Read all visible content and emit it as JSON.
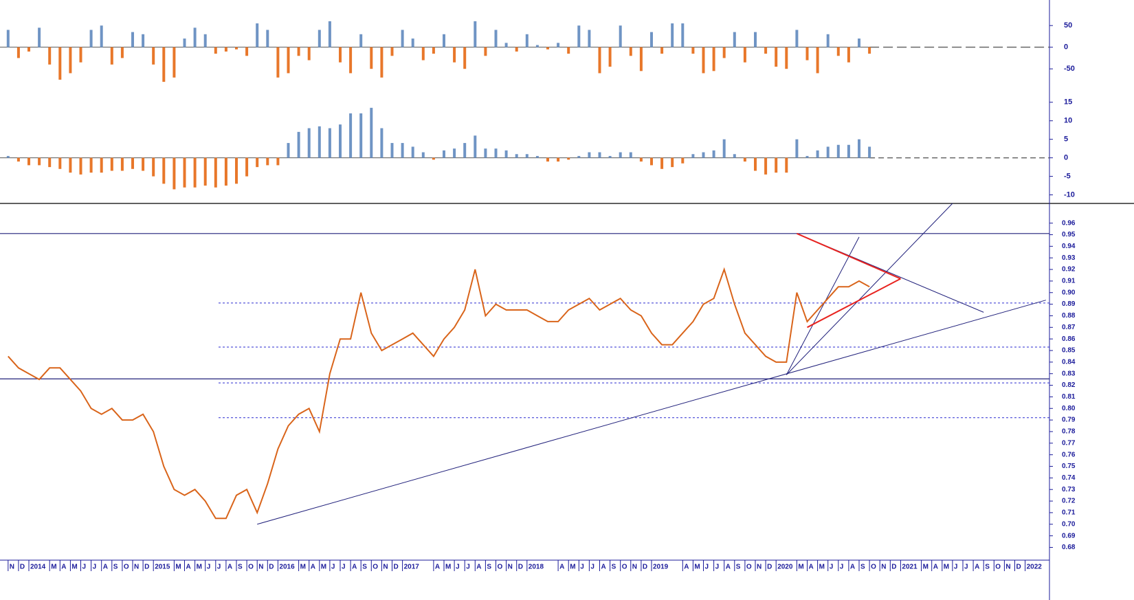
{
  "chart_data": [
    {
      "type": "bar",
      "ylim": [
        -110,
        109
      ],
      "yticks": [
        -50,
        0,
        50
      ],
      "colors": {
        "positive": "#6f94c4",
        "negative": "#e8772a"
      },
      "x": [
        "2013-11",
        "2013-12",
        "2014-01",
        "2014-02",
        "2014-03",
        "2014-04",
        "2014-05",
        "2014-06",
        "2014-07",
        "2014-08",
        "2014-09",
        "2014-10",
        "2014-11",
        "2014-12",
        "2015-01",
        "2015-02",
        "2015-03",
        "2015-04",
        "2015-05",
        "2015-06",
        "2015-07",
        "2015-08",
        "2015-09",
        "2015-10",
        "2015-11",
        "2015-12",
        "2016-01",
        "2016-02",
        "2016-03",
        "2016-04",
        "2016-05",
        "2016-06",
        "2016-07",
        "2016-08",
        "2016-09",
        "2016-10",
        "2016-11",
        "2016-12",
        "2017-01",
        "2017-02",
        "2017-03",
        "2017-04",
        "2017-05",
        "2017-06",
        "2017-07",
        "2017-08",
        "2017-09",
        "2017-10",
        "2017-11",
        "2017-12",
        "2018-01",
        "2018-02",
        "2018-03",
        "2018-04",
        "2018-05",
        "2018-06",
        "2018-07",
        "2018-08",
        "2018-09",
        "2018-10",
        "2018-11",
        "2018-12",
        "2019-01",
        "2019-02",
        "2019-03",
        "2019-04",
        "2019-05",
        "2019-06",
        "2019-07",
        "2019-08",
        "2019-09",
        "2019-10",
        "2019-11",
        "2019-12",
        "2020-01",
        "2020-02",
        "2020-03",
        "2020-04",
        "2020-05",
        "2020-06",
        "2020-07",
        "2020-08",
        "2020-09",
        "2020-10"
      ],
      "values": [
        40,
        -25,
        -10,
        45,
        -40,
        -75,
        -60,
        -35,
        40,
        50,
        -40,
        -25,
        35,
        30,
        -40,
        -80,
        -70,
        20,
        45,
        30,
        -15,
        -10,
        -5,
        -20,
        55,
        40,
        -70,
        -60,
        -20,
        -30,
        40,
        60,
        -35,
        -60,
        30,
        -50,
        -70,
        -20,
        40,
        20,
        -30,
        -15,
        30,
        -35,
        -50,
        60,
        -20,
        40,
        10,
        -10,
        30,
        5,
        -5,
        10,
        -15,
        50,
        40,
        -60,
        -45,
        50,
        -20,
        -55,
        35,
        -15,
        55,
        55,
        -15,
        -60,
        -55,
        -25,
        35,
        -35,
        35,
        -15,
        -45,
        -50,
        40,
        -30,
        -60,
        30,
        -20,
        -35,
        20,
        -15
      ]
    },
    {
      "type": "bar",
      "ylim": [
        -11.2,
        15.7
      ],
      "yticks": [
        -10,
        -5,
        0,
        5,
        10,
        15
      ],
      "colors": {
        "positive": "#6f94c4",
        "negative": "#e8772a"
      },
      "x": [
        "2013-11",
        "2013-12",
        "2014-01",
        "2014-02",
        "2014-03",
        "2014-04",
        "2014-05",
        "2014-06",
        "2014-07",
        "2014-08",
        "2014-09",
        "2014-10",
        "2014-11",
        "2014-12",
        "2015-01",
        "2015-02",
        "2015-03",
        "2015-04",
        "2015-05",
        "2015-06",
        "2015-07",
        "2015-08",
        "2015-09",
        "2015-10",
        "2015-11",
        "2015-12",
        "2016-01",
        "2016-02",
        "2016-03",
        "2016-04",
        "2016-05",
        "2016-06",
        "2016-07",
        "2016-08",
        "2016-09",
        "2016-10",
        "2016-11",
        "2016-12",
        "2017-01",
        "2017-02",
        "2017-03",
        "2017-04",
        "2017-05",
        "2017-06",
        "2017-07",
        "2017-08",
        "2017-09",
        "2017-10",
        "2017-11",
        "2017-12",
        "2018-01",
        "2018-02",
        "2018-03",
        "2018-04",
        "2018-05",
        "2018-06",
        "2018-07",
        "2018-08",
        "2018-09",
        "2018-10",
        "2018-11",
        "2018-12",
        "2019-01",
        "2019-02",
        "2019-03",
        "2019-04",
        "2019-05",
        "2019-06",
        "2019-07",
        "2019-08",
        "2019-09",
        "2019-10",
        "2019-11",
        "2019-12",
        "2020-01",
        "2020-02",
        "2020-03",
        "2020-04",
        "2020-05",
        "2020-06",
        "2020-07",
        "2020-08",
        "2020-09",
        "2020-10"
      ],
      "values": [
        0.5,
        -1,
        -2,
        -2,
        -2.5,
        -3,
        -4,
        -4.5,
        -4,
        -4,
        -3.5,
        -3.5,
        -3,
        -3.5,
        -5,
        -7,
        -8.5,
        -8,
        -8,
        -7.5,
        -8,
        -7.5,
        -7,
        -5,
        -2.5,
        -2,
        -2,
        4,
        7,
        8,
        8.5,
        8,
        9,
        12,
        12,
        13.5,
        8,
        4,
        4,
        3,
        1.5,
        -0.5,
        2,
        2.5,
        4,
        6,
        2.5,
        2.5,
        2,
        1,
        1,
        0.5,
        -1,
        -1,
        -0.5,
        0.5,
        1.5,
        1.5,
        0.5,
        1.5,
        1.5,
        -1,
        -2,
        -3,
        -2.5,
        -1.5,
        1,
        1.5,
        2,
        5,
        1,
        -1,
        -3.5,
        -4.5,
        -4,
        -4,
        5,
        0.5,
        2,
        3,
        3.5,
        3.5,
        5,
        3
      ]
    },
    {
      "type": "line",
      "color": "#d9641a",
      "ylim": [
        0.669,
        0.977
      ],
      "yticks": [
        {
          "value": 0.68,
          "label": "0.68"
        },
        0.69,
        {
          "value": 0.7,
          "label": "0.70"
        },
        0.71,
        0.72,
        0.73,
        0.74,
        0.75,
        0.76,
        0.77,
        0.78,
        0.79,
        {
          "value": 0.8,
          "label": "0.80"
        },
        0.81,
        0.82,
        0.83,
        0.84,
        0.85,
        0.86,
        0.87,
        0.88,
        0.89,
        {
          "value": 0.9,
          "label": "0.90"
        },
        0.91,
        0.92,
        0.93,
        0.94,
        0.95,
        0.96
      ],
      "x": [
        "2013-11",
        "2013-12",
        "2014-01",
        "2014-02",
        "2014-03",
        "2014-04",
        "2014-05",
        "2014-06",
        "2014-07",
        "2014-08",
        "2014-09",
        "2014-10",
        "2014-11",
        "2014-12",
        "2015-01",
        "2015-02",
        "2015-03",
        "2015-04",
        "2015-05",
        "2015-06",
        "2015-07",
        "2015-08",
        "2015-09",
        "2015-10",
        "2015-11",
        "2015-12",
        "2016-01",
        "2016-02",
        "2016-03",
        "2016-04",
        "2016-05",
        "2016-06",
        "2016-07",
        "2016-08",
        "2016-09",
        "2016-10",
        "2016-11",
        "2016-12",
        "2017-01",
        "2017-02",
        "2017-03",
        "2017-04",
        "2017-05",
        "2017-06",
        "2017-07",
        "2017-08",
        "2017-09",
        "2017-10",
        "2017-11",
        "2017-12",
        "2018-01",
        "2018-02",
        "2018-03",
        "2018-04",
        "2018-05",
        "2018-06",
        "2018-07",
        "2018-08",
        "2018-09",
        "2018-10",
        "2018-11",
        "2018-12",
        "2019-01",
        "2019-02",
        "2019-03",
        "2019-04",
        "2019-05",
        "2019-06",
        "2019-07",
        "2019-08",
        "2019-09",
        "2019-10",
        "2019-11",
        "2019-12",
        "2020-01",
        "2020-02",
        "2020-03",
        "2020-04",
        "2020-05",
        "2020-06",
        "2020-07",
        "2020-08",
        "2020-09",
        "2020-10"
      ],
      "values": [
        0.845,
        0.835,
        0.83,
        0.825,
        0.835,
        0.835,
        0.825,
        0.815,
        0.8,
        0.795,
        0.8,
        0.79,
        0.79,
        0.795,
        0.78,
        0.75,
        0.73,
        0.725,
        0.73,
        0.72,
        0.705,
        0.705,
        0.725,
        0.73,
        0.71,
        0.735,
        0.765,
        0.785,
        0.795,
        0.8,
        0.78,
        0.83,
        0.86,
        0.86,
        0.9,
        0.865,
        0.85,
        0.855,
        0.86,
        0.865,
        0.855,
        0.845,
        0.86,
        0.87,
        0.885,
        0.92,
        0.88,
        0.89,
        0.885,
        0.885,
        0.885,
        0.88,
        0.875,
        0.875,
        0.885,
        0.89,
        0.895,
        0.885,
        0.89,
        0.895,
        0.885,
        0.88,
        0.865,
        0.855,
        0.855,
        0.865,
        0.875,
        0.89,
        0.895,
        0.92,
        0.89,
        0.865,
        0.855,
        0.845,
        0.84,
        0.84,
        0.9,
        0.875,
        0.885,
        0.895,
        0.905,
        0.905,
        0.91,
        0.905
      ],
      "levels": {
        "solid": [
          0.951,
          0.8255
        ],
        "dotted": [
          0.891,
          0.853,
          0.822,
          0.792
        ]
      },
      "lines": [
        {
          "x": [
            "2015-11",
            "2022-03"
          ],
          "y": [
            0.7,
            0.8935
          ],
          "color": "#1f1f7a"
        },
        {
          "x": [
            "2020-02",
            "2020-09"
          ],
          "y": [
            0.829,
            0.948
          ],
          "color": "#1f1f7a"
        },
        {
          "x": [
            "2020-02",
            "2021-06"
          ],
          "y": [
            0.829,
            0.977
          ],
          "color": "#1f1f7a"
        },
        {
          "x": [
            "2020-03",
            "2021-09"
          ],
          "y": [
            0.951,
            0.883
          ],
          "color": "#1f1f7a"
        },
        {
          "x": [
            "2020-03",
            "2021-01"
          ],
          "y": [
            0.951,
            0.912
          ],
          "color": "#e8231f"
        },
        {
          "x": [
            "2020-04",
            "2021-01"
          ],
          "y": [
            0.87,
            0.912
          ],
          "color": "#e8231f"
        }
      ],
      "xticks": [
        {
          "value": "2013-11",
          "label": "N"
        },
        {
          "value": "2013-12",
          "label": "D"
        },
        {
          "value": "2014-01",
          "label": "2014"
        },
        {
          "value": "2014-03",
          "label": "M"
        },
        {
          "value": "2014-04",
          "label": "A"
        },
        {
          "value": "2014-05",
          "label": "M"
        },
        {
          "value": "2014-06",
          "label": "J"
        },
        {
          "value": "2014-07",
          "label": "J"
        },
        {
          "value": "2014-08",
          "label": "A"
        },
        {
          "value": "2014-09",
          "label": "S"
        },
        {
          "value": "2014-10",
          "label": "O"
        },
        {
          "value": "2014-11",
          "label": "N"
        },
        {
          "value": "2014-12",
          "label": "D"
        },
        {
          "value": "2015-01",
          "label": "2015"
        },
        {
          "value": "2015-03",
          "label": "M"
        },
        {
          "value": "2015-04",
          "label": "A"
        },
        {
          "value": "2015-05",
          "label": "M"
        },
        {
          "value": "2015-06",
          "label": "J"
        },
        {
          "value": "2015-07",
          "label": "J"
        },
        {
          "value": "2015-08",
          "label": "A"
        },
        {
          "value": "2015-09",
          "label": "S"
        },
        {
          "value": "2015-10",
          "label": "O"
        },
        {
          "value": "2015-11",
          "label": "N"
        },
        {
          "value": "2015-12",
          "label": "D"
        },
        {
          "value": "2016-01",
          "label": "2016"
        },
        {
          "value": "2016-03",
          "label": "M"
        },
        {
          "value": "2016-04",
          "label": "A"
        },
        {
          "value": "2016-05",
          "label": "M"
        },
        {
          "value": "2016-06",
          "label": "J"
        },
        {
          "value": "2016-07",
          "label": "J"
        },
        {
          "value": "2016-08",
          "label": "A"
        },
        {
          "value": "2016-09",
          "label": "S"
        },
        {
          "value": "2016-10",
          "label": "O"
        },
        {
          "value": "2016-11",
          "label": "N"
        },
        {
          "value": "2016-12",
          "label": "D"
        },
        {
          "value": "2017-01",
          "label": "2017"
        },
        {
          "value": "2017-04",
          "label": "A"
        },
        {
          "value": "2017-05",
          "label": "M"
        },
        {
          "value": "2017-06",
          "label": "J"
        },
        {
          "value": "2017-07",
          "label": "J"
        },
        {
          "value": "2017-08",
          "label": "A"
        },
        {
          "value": "2017-09",
          "label": "S"
        },
        {
          "value": "2017-10",
          "label": "O"
        },
        {
          "value": "2017-11",
          "label": "N"
        },
        {
          "value": "2017-12",
          "label": "D"
        },
        {
          "value": "2018-01",
          "label": "2018"
        },
        {
          "value": "2018-04",
          "label": "A"
        },
        {
          "value": "2018-05",
          "label": "M"
        },
        {
          "value": "2018-06",
          "label": "J"
        },
        {
          "value": "2018-07",
          "label": "J"
        },
        {
          "value": "2018-08",
          "label": "A"
        },
        {
          "value": "2018-09",
          "label": "S"
        },
        {
          "value": "2018-10",
          "label": "O"
        },
        {
          "value": "2018-11",
          "label": "N"
        },
        {
          "value": "2018-12",
          "label": "D"
        },
        {
          "value": "2019-01",
          "label": "2019"
        },
        {
          "value": "2019-04",
          "label": "A"
        },
        {
          "value": "2019-05",
          "label": "M"
        },
        {
          "value": "2019-06",
          "label": "J"
        },
        {
          "value": "2019-07",
          "label": "J"
        },
        {
          "value": "2019-08",
          "label": "A"
        },
        {
          "value": "2019-09",
          "label": "S"
        },
        {
          "value": "2019-10",
          "label": "O"
        },
        {
          "value": "2019-11",
          "label": "N"
        },
        {
          "value": "2019-12",
          "label": "D"
        },
        {
          "value": "2020-01",
          "label": "2020"
        },
        {
          "value": "2020-03",
          "label": "M"
        },
        {
          "value": "2020-04",
          "label": "A"
        },
        {
          "value": "2020-05",
          "label": "M"
        },
        {
          "value": "2020-06",
          "label": "J"
        },
        {
          "value": "2020-07",
          "label": "J"
        },
        {
          "value": "2020-08",
          "label": "A"
        },
        {
          "value": "2020-09",
          "label": "S"
        },
        {
          "value": "2020-10",
          "label": "O"
        },
        {
          "value": "2020-11",
          "label": "N"
        },
        {
          "value": "2020-12",
          "label": "D"
        },
        {
          "value": "2021-01",
          "label": "2021"
        },
        {
          "value": "2021-03",
          "label": "M"
        },
        {
          "value": "2021-04",
          "label": "A"
        },
        {
          "value": "2021-05",
          "label": "M"
        },
        {
          "value": "2021-06",
          "label": "J"
        },
        {
          "value": "2021-07",
          "label": "J"
        },
        {
          "value": "2021-08",
          "label": "A"
        },
        {
          "value": "2021-09",
          "label": "S"
        },
        {
          "value": "2021-10",
          "label": "O"
        },
        {
          "value": "2021-11",
          "label": "N"
        },
        {
          "value": "2021-12",
          "label": "D"
        },
        {
          "value": "2022-01",
          "label": "2022"
        }
      ]
    }
  ]
}
